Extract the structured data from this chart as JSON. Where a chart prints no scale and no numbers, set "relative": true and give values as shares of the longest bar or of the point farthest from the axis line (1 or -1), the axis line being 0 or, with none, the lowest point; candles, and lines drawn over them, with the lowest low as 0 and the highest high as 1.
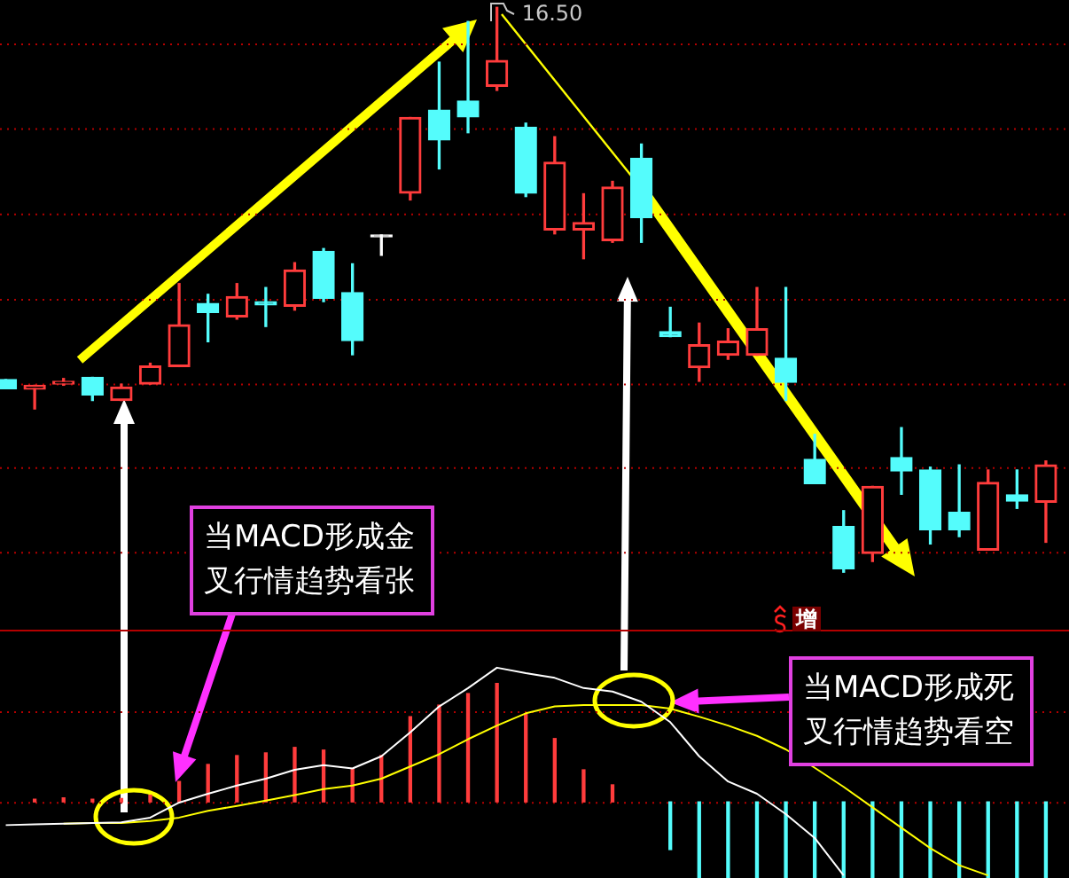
{
  "chart_data": [
    {
      "type": "candlestick",
      "relative": true,
      "categories": [
        null,
        null,
        null,
        null,
        null,
        null,
        null,
        null,
        null,
        null,
        null,
        null,
        null,
        null,
        null,
        null,
        null,
        null,
        null,
        null,
        null,
        null,
        null,
        null,
        null,
        null,
        null,
        null,
        null,
        null,
        null,
        null,
        null,
        null,
        null,
        null,
        null
      ],
      "ohlc": [
        [
          0.341,
          0.341,
          0.325,
          0.325
        ],
        [
          0.324,
          0.331,
          0.289,
          0.331
        ],
        [
          0.333,
          0.343,
          0.331,
          0.338
        ],
        [
          0.345,
          0.345,
          0.304,
          0.314
        ],
        [
          0.304,
          0.333,
          0.304,
          0.328
        ],
        [
          0.333,
          0.37,
          0.333,
          0.365
        ],
        [
          0.364,
          0.511,
          0.364,
          0.438
        ],
        [
          0.476,
          0.492,
          0.408,
          0.46
        ],
        [
          0.452,
          0.511,
          0.448,
          0.488
        ],
        [
          0.479,
          0.504,
          0.435,
          0.473
        ],
        [
          0.471,
          0.548,
          0.464,
          0.535
        ],
        [
          0.568,
          0.573,
          0.479,
          0.485
        ],
        [
          0.495,
          0.546,
          0.385,
          0.41
        ],
        [
          0.597,
          0.597,
          0.561,
          0.597
        ],
        [
          0.671,
          0.805,
          0.659,
          0.805
        ],
        [
          0.818,
          0.903,
          0.714,
          0.765
        ],
        [
          0.834,
          0.975,
          0.778,
          0.806
        ],
        [
          0.86,
          1,
          0.853,
          0.906
        ],
        [
          0.788,
          0.795,
          0.665,
          0.671
        ],
        [
          0.606,
          0.771,
          0.599,
          0.726
        ],
        [
          0.606,
          0.67,
          0.555,
          0.619
        ],
        [
          0.587,
          0.692,
          0.584,
          0.682
        ],
        [
          0.733,
          0.758,
          0.584,
          0.628
        ],
        [
          0.426,
          0.469,
          0.417,
          0.417
        ],
        [
          0.362,
          0.441,
          0.338,
          0.403
        ],
        [
          0.384,
          0.431,
          0.377,
          0.409
        ],
        [
          0.384,
          0.504,
          0.384,
          0.431
        ],
        [
          0.379,
          0.504,
          0.304,
          0.336
        ],
        [
          0.2,
          0.244,
          0.157,
          0.157
        ],
        [
          0.081,
          0.109,
          0,
          0.006
        ],
        [
          0.033,
          0.152,
          0.019,
          0.152
        ],
        [
          0.203,
          0.256,
          0.138,
          0.179
        ],
        [
          0.181,
          0.186,
          0.05,
          0.075
        ],
        [
          0.106,
          0.19,
          0.063,
          0.075
        ],
        [
          0.039,
          0.181,
          0.039,
          0.159
        ],
        [
          0.137,
          0.181,
          0.113,
          0.126
        ],
        [
          0.124,
          0.197,
          0.053,
          0.19
        ]
      ],
      "colors": [
        "#54fcfc",
        "#ff3c3c",
        "#ff3c3c",
        "#54fcfc",
        "#ff3c3c",
        "#ff3c3c",
        "#ff3c3c",
        "#54fcfc",
        "#ff3c3c",
        "#54fcfc",
        "#ff3c3c",
        "#54fcfc",
        "#54fcfc",
        "#ffffff",
        "#ff3c3c",
        "#54fcfc",
        "#54fcfc",
        "#ff3c3c",
        "#54fcfc",
        "#ff3c3c",
        "#ff3c3c",
        "#ff3c3c",
        "#54fcfc",
        "#54fcfc",
        "#ff3c3c",
        "#ff3c3c",
        "#ff3c3c",
        "#54fcfc",
        "#54fcfc",
        "#54fcfc",
        "#ff3c3c",
        "#54fcfc",
        "#54fcfc",
        "#54fcfc",
        "#ff3c3c",
        "#54fcfc",
        "#ff3c3c"
      ],
      "ref_lines": [
        {
          "axis": "y",
          "value": 0.936,
          "color": "#b40000",
          "line_style": "dotted"
        },
        {
          "axis": "y",
          "value": 0.786,
          "color": "#b40000",
          "line_style": "dotted"
        },
        {
          "axis": "y",
          "value": 0.635,
          "color": "#b40000",
          "line_style": "dotted"
        },
        {
          "axis": "y",
          "value": 0.484,
          "color": "#b40000",
          "line_style": "dotted"
        },
        {
          "axis": "y",
          "value": 0.334,
          "color": "#b40000",
          "line_style": "dotted"
        },
        {
          "axis": "y",
          "value": 0.186,
          "color": "#b40000",
          "line_style": "dotted"
        },
        {
          "axis": "y",
          "value": 0.036,
          "color": "#b40000",
          "line_style": "dotted"
        }
      ],
      "annotations": [
        "16.50",
        "当MACD形成金叉行情趋势看张"
      ]
    },
    {
      "type": "bar",
      "relative": true,
      "categories": [
        null,
        null,
        null,
        null,
        null,
        null,
        null,
        null,
        null,
        null,
        null,
        null,
        null,
        null,
        null,
        null,
        null,
        null,
        null,
        null,
        null,
        null,
        null,
        null,
        null,
        null,
        null,
        null,
        null,
        null,
        null,
        null,
        null,
        null,
        null,
        null,
        null
      ],
      "series": [
        {
          "type": "bar",
          "values": [
            null,
            0.02,
            0.03,
            0.02,
            0.025,
            0.05,
            0.152,
            0.279,
            0.345,
            0.365,
            0.406,
            0.386,
            0.249,
            0.345,
            0.635,
            0.721,
            0.807,
            0.883,
            0.655,
            0.472,
            0.239,
            0.127,
            null,
            -0.355,
            -0.563,
            -0.563,
            -0.563,
            -0.563,
            -0.563,
            -0.563,
            -0.563,
            -0.563,
            -0.563,
            -0.563,
            -0.563,
            -0.563,
            -0.563
          ],
          "colors": [
            "#ff3c3c",
            "#ff3c3c",
            "#ff3c3c",
            "#ff3c3c",
            "#ff3c3c",
            "#ff3c3c",
            "#ff3c3c",
            "#ff3c3c",
            "#ff3c3c",
            "#ff3c3c",
            "#ff3c3c",
            "#ff3c3c",
            "#ff3c3c",
            "#ff3c3c",
            "#ff3c3c",
            "#ff3c3c",
            "#ff3c3c",
            "#ff3c3c",
            "#ff3c3c",
            "#ff3c3c",
            "#ff3c3c",
            "#ff3c3c",
            "#ff3c3c",
            "#54fcfc",
            "#54fcfc",
            "#54fcfc",
            "#54fcfc",
            "#54fcfc",
            "#54fcfc",
            "#54fcfc",
            "#54fcfc",
            "#54fcfc",
            "#54fcfc",
            "#54fcfc",
            "#54fcfc",
            "#54fcfc",
            "#54fcfc"
          ]
        },
        {
          "type": "line",
          "color": "#ffffff",
          "values": [
            -0.173,
            -0.168,
            -0.162,
            -0.157,
            -0.152,
            -0.117,
            -0.005,
            0.061,
            0.122,
            0.173,
            0.239,
            0.274,
            0.249,
            0.34,
            0.518,
            0.711,
            0.848,
            1,
            0.959,
            0.924,
            0.848,
            0.822,
            0.746,
            0.594,
            0.34,
            0.152,
            0.061,
            -0.091,
            -0.269,
            -0.548,
            null,
            null,
            null,
            null,
            null,
            null,
            null
          ]
        },
        {
          "type": "line",
          "color": "#ffff00",
          "values": [
            null,
            null,
            -0.162,
            -0.157,
            -0.157,
            -0.142,
            -0.117,
            -0.066,
            -0.03,
            0.01,
            0.051,
            0.096,
            0.122,
            0.173,
            0.264,
            0.355,
            0.467,
            0.569,
            0.66,
            0.711,
            0.721,
            0.721,
            0.721,
            0.695,
            0.635,
            0.569,
            0.492,
            0.391,
            0.254,
            0.112,
            -0.041,
            -0.193,
            -0.345,
            -0.472,
            -0.548,
            null,
            null
          ]
        }
      ],
      "ref_lines": [
        {
          "axis": "y",
          "value": 0,
          "color": "#b40000",
          "line_style": "dotted"
        },
        {
          "axis": "y",
          "value": 0.675,
          "color": "#b40000",
          "line_style": "dotted"
        }
      ],
      "annotations": [
        "增",
        "当MACD形成死叉行情趋势看空"
      ]
    }
  ]
}
